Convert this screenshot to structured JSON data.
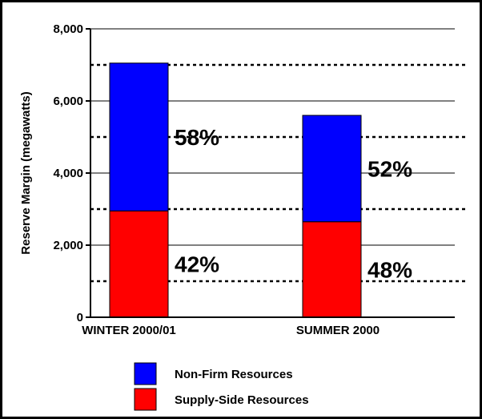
{
  "chart_data": {
    "type": "bar",
    "stacked": true,
    "ylabel": "Reserve Margin (megawatts)",
    "ylim": [
      0,
      8000
    ],
    "yticks": [
      0,
      2000,
      4000,
      6000,
      8000
    ],
    "ytick_labels": [
      "0",
      "2,000",
      "4,000",
      "6,000",
      "8,000"
    ],
    "categories": [
      "WINTER 2000/01",
      "SUMMER 2000"
    ],
    "series": [
      {
        "name": "Supply-Side Resources",
        "color": "#ff0000",
        "values": [
          2950,
          2650
        ],
        "labels": [
          "42%",
          "48%"
        ]
      },
      {
        "name": "Non-Firm Resources",
        "color": "#0000ff",
        "values": [
          4100,
          2950
        ],
        "labels": [
          "58%",
          "52%"
        ]
      }
    ],
    "reference_lines": [
      1000,
      3000,
      5000,
      7000
    ],
    "grid": true,
    "legend": {
      "position": "bottom-left"
    }
  }
}
